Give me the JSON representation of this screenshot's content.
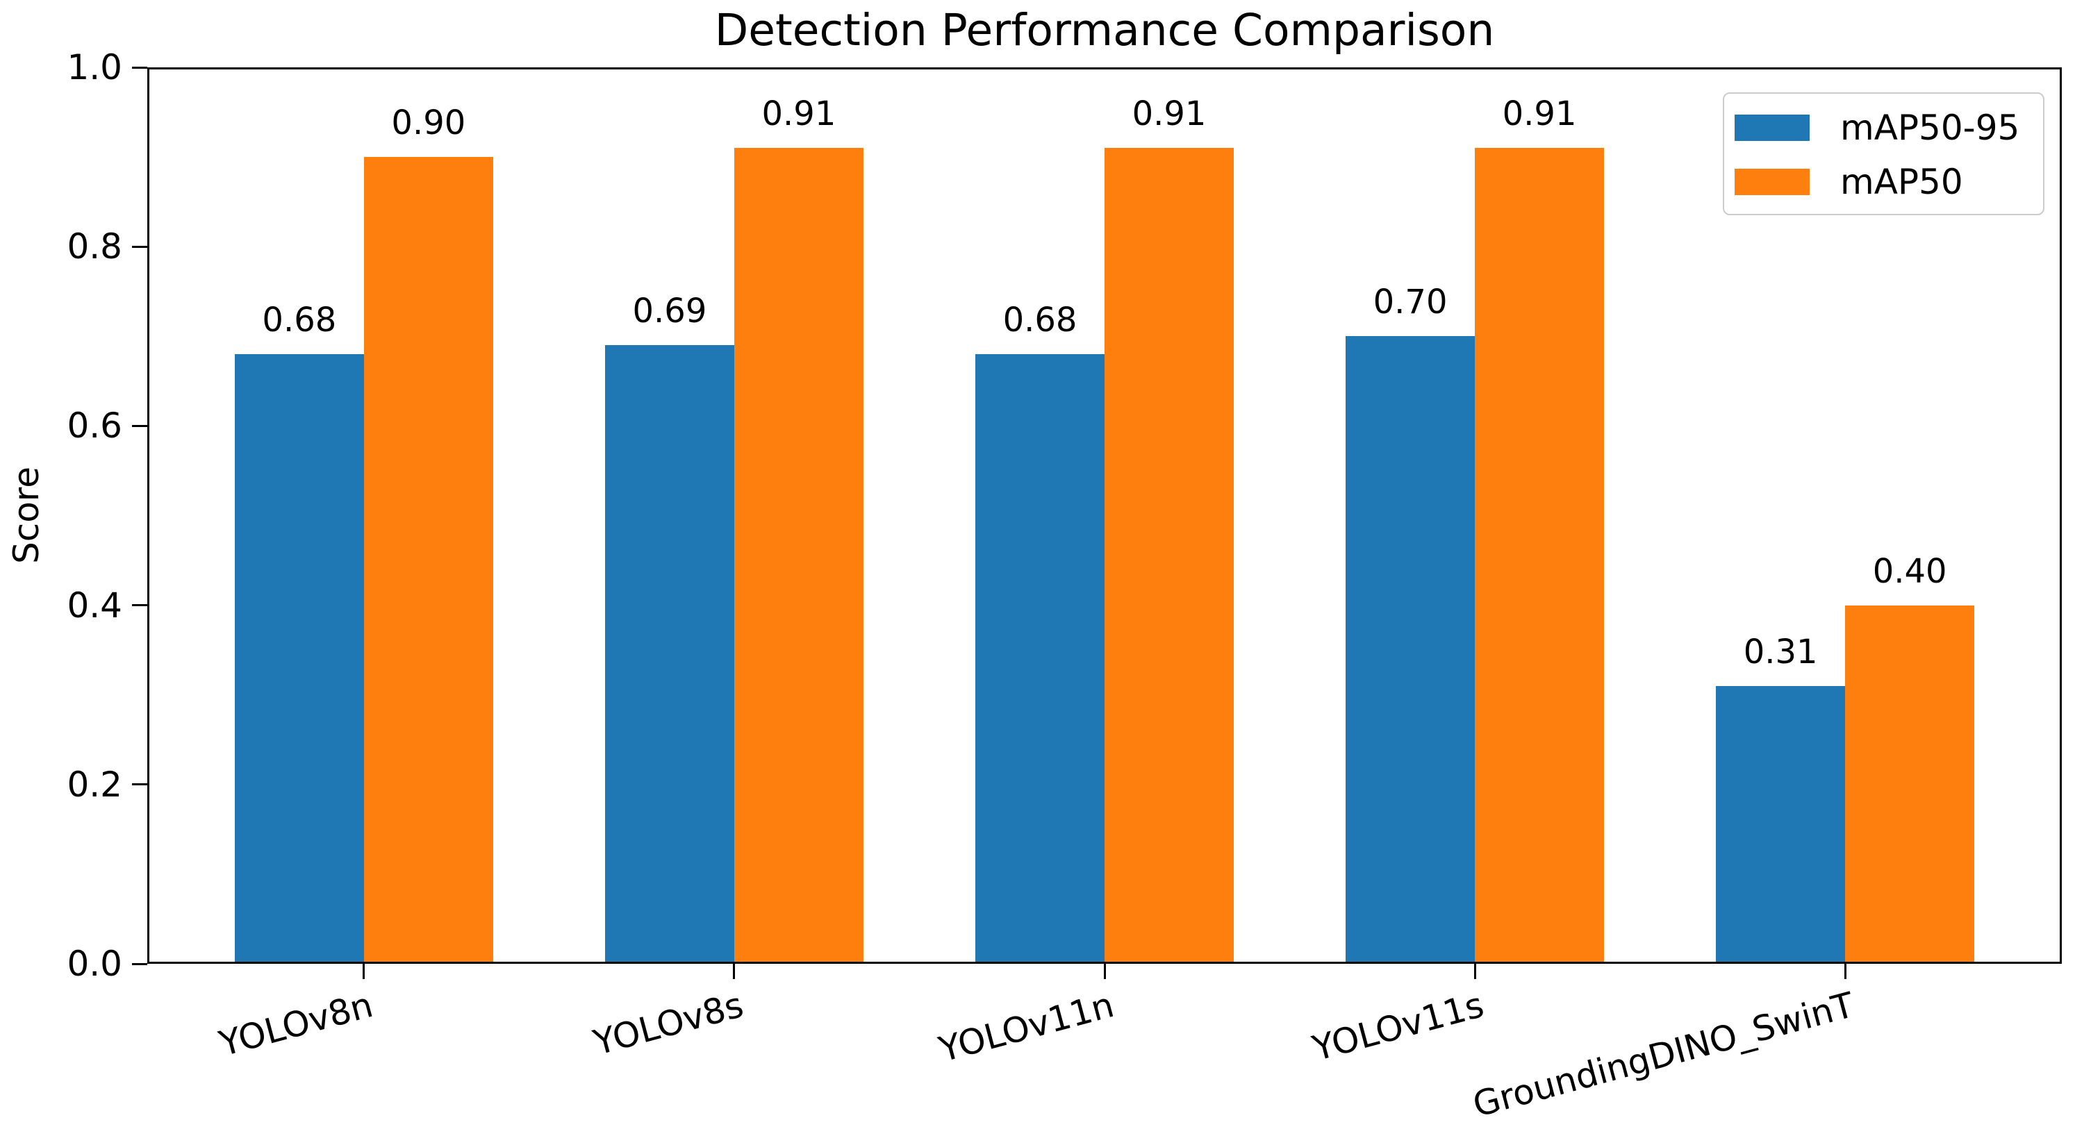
{
  "chart_data": {
    "type": "bar",
    "title": "Detection Performance Comparison",
    "xlabel": "",
    "ylabel": "Score",
    "categories": [
      "YOLOv8n",
      "YOLOv8s",
      "YOLOv11n",
      "YOLOv11s",
      "GroundingDINO_SwinT"
    ],
    "series": [
      {
        "name": "mAP50-95",
        "color": "#1f77b4",
        "values": [
          0.68,
          0.69,
          0.68,
          0.7,
          0.31
        ]
      },
      {
        "name": "mAP50",
        "color": "#ff7f0e",
        "values": [
          0.9,
          0.91,
          0.91,
          0.91,
          0.4
        ]
      }
    ],
    "bar_value_labels": [
      [
        "0.68",
        "0.69",
        "0.68",
        "0.70",
        "0.31"
      ],
      [
        "0.90",
        "0.91",
        "0.91",
        "0.91",
        "0.40"
      ]
    ],
    "ylim": [
      0.0,
      1.0
    ],
    "yticks": [
      0.0,
      0.2,
      0.4,
      0.6,
      0.8,
      1.0
    ],
    "ytick_labels": [
      "0.0",
      "0.2",
      "0.4",
      "0.6",
      "0.8",
      "1.0"
    ],
    "grid": false,
    "legend_position": "upper right",
    "x_tick_rotation_deg": 15,
    "colors": {
      "axis": "#000000",
      "text": "#000000",
      "background": "#ffffff",
      "legend_border": "#cccccc"
    }
  }
}
